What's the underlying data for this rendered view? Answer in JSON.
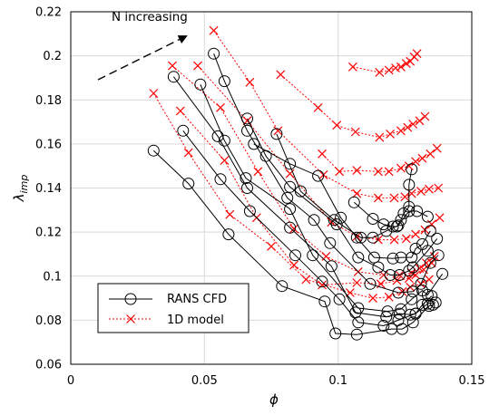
{
  "chart_data": {
    "type": "line",
    "title": "",
    "xlabel": "ϕ",
    "ylabel_base": "λ",
    "ylabel_sub": "imp",
    "xlim": [
      0,
      0.15
    ],
    "ylim": [
      0.06,
      0.22
    ],
    "xticks": [
      0,
      0.05,
      0.1,
      0.15
    ],
    "xtick_labels": [
      "0",
      "0.05",
      "0.1",
      "0.15"
    ],
    "yticks": [
      0.06,
      0.08,
      0.1,
      0.12,
      0.14,
      0.16,
      0.18,
      0.2,
      0.22
    ],
    "ytick_labels": [
      "0.06",
      "0.08",
      "0.1",
      "0.12",
      "0.14",
      "0.16",
      "0.18",
      "0.2",
      "0.22"
    ],
    "grid": true,
    "legend_position": "bottom-left",
    "annotation": "N increasing",
    "series": [
      {
        "name": "RANS CFD",
        "color": "#000000",
        "marker": "circle",
        "curves": [
          [
            [
              0.031,
              0.157
            ],
            [
              0.044,
              0.142
            ],
            [
              0.059,
              0.119
            ],
            [
              0.079,
              0.0955
            ],
            [
              0.095,
              0.0885
            ],
            [
              0.099,
              0.074
            ],
            [
              0.107,
              0.0735
            ],
            [
              0.12,
              0.076
            ],
            [
              0.124,
              0.076
            ],
            [
              0.128,
              0.079
            ],
            [
              0.134,
              0.0865
            ],
            [
              0.1355,
              0.087
            ]
          ],
          [
            [
              0.042,
              0.166
            ],
            [
              0.056,
              0.144
            ],
            [
              0.067,
              0.1295
            ],
            [
              0.084,
              0.1095
            ],
            [
              0.094,
              0.0975
            ],
            [
              0.1005,
              0.0895
            ],
            [
              0.1075,
              0.079
            ],
            [
              0.117,
              0.0775
            ],
            [
              0.1225,
              0.08
            ],
            [
              0.129,
              0.083
            ],
            [
              0.1335,
              0.0875
            ],
            [
              0.1365,
              0.088
            ]
          ],
          [
            [
              0.0385,
              0.1905
            ],
            [
              0.055,
              0.1635
            ],
            [
              0.066,
              0.14
            ],
            [
              0.082,
              0.122
            ],
            [
              0.0975,
              0.1045
            ],
            [
              0.1065,
              0.0835
            ],
            [
              0.118,
              0.0815
            ],
            [
              0.123,
              0.083
            ],
            [
              0.127,
              0.0825
            ],
            [
              0.129,
              0.083
            ],
            [
              0.1315,
              0.087
            ],
            [
              0.135,
              0.091
            ]
          ],
          [
            [
              0.0485,
              0.187
            ],
            [
              0.0575,
              0.1615
            ],
            [
              0.0655,
              0.1445
            ],
            [
              0.082,
              0.1305
            ],
            [
              0.0905,
              0.1095
            ],
            [
              0.1075,
              0.0855
            ],
            [
              0.1185,
              0.084
            ],
            [
              0.1235,
              0.085
            ],
            [
              0.1275,
              0.0895
            ],
            [
              0.1315,
              0.0935
            ],
            [
              0.1335,
              0.0915
            ],
            [
              0.139,
              0.101
            ]
          ],
          [
            [
              0.0535,
              0.201
            ],
            [
              0.0575,
              0.1885
            ],
            [
              0.066,
              0.166
            ],
            [
              0.081,
              0.1355
            ],
            [
              0.091,
              0.1255
            ],
            [
              0.097,
              0.115
            ],
            [
              0.112,
              0.0965
            ],
            [
              0.1225,
              0.0925
            ],
            [
              0.128,
              0.093
            ],
            [
              0.131,
              0.0965
            ],
            [
              0.1345,
              0.106
            ],
            [
              0.1375,
              0.1095
            ]
          ],
          [
            [
              0.066,
              0.1715
            ],
            [
              0.073,
              0.1545
            ],
            [
              0.082,
              0.1405
            ],
            [
              0.0995,
              0.1235
            ],
            [
              0.1075,
              0.1085
            ],
            [
              0.115,
              0.104
            ],
            [
              0.1195,
              0.1005
            ],
            [
              0.123,
              0.1005
            ],
            [
              0.1265,
              0.1025
            ],
            [
              0.128,
              0.104
            ],
            [
              0.1335,
              0.1115
            ],
            [
              0.137,
              0.117
            ]
          ],
          [
            [
              0.0685,
              0.16
            ],
            [
              0.082,
              0.151
            ],
            [
              0.0925,
              0.1455
            ],
            [
              0.101,
              0.1265
            ],
            [
              0.107,
              0.1175
            ],
            [
              0.1135,
              0.1085
            ],
            [
              0.1205,
              0.108
            ],
            [
              0.1235,
              0.1085
            ],
            [
              0.1275,
              0.1085
            ],
            [
              0.129,
              0.1125
            ],
            [
              0.1315,
              0.1145
            ],
            [
              0.1345,
              0.1205
            ]
          ],
          [
            [
              0.077,
              0.1645
            ],
            [
              0.086,
              0.1385
            ],
            [
              0.0985,
              0.1255
            ],
            [
              0.1085,
              0.1175
            ],
            [
              0.113,
              0.1175
            ],
            [
              0.118,
              0.1205
            ],
            [
              0.1225,
              0.123
            ],
            [
              0.1265,
              0.1295
            ],
            [
              0.1295,
              0.1295
            ],
            [
              0.1335,
              0.127
            ]
          ],
          [
            [
              0.106,
              0.1335
            ],
            [
              0.113,
              0.126
            ],
            [
              0.117,
              0.1235
            ],
            [
              0.1205,
              0.1225
            ],
            [
              0.122,
              0.1225
            ],
            [
              0.1235,
              0.1255
            ],
            [
              0.1245,
              0.1285
            ],
            [
              0.1265,
              0.1315
            ],
            [
              0.1265,
              0.1415
            ],
            [
              0.1275,
              0.1485
            ]
          ]
        ]
      },
      {
        "name": "1D model",
        "color": "#ff0000",
        "marker": "x",
        "curves": [
          [
            [
              0.031,
              0.183
            ],
            [
              0.044,
              0.156
            ],
            [
              0.0595,
              0.128
            ],
            [
              0.075,
              0.1135
            ],
            [
              0.088,
              0.0985
            ],
            [
              0.1045,
              0.0925
            ],
            [
              0.113,
              0.09
            ],
            [
              0.119,
              0.0905
            ],
            [
              0.124,
              0.093
            ],
            [
              0.127,
              0.095
            ],
            [
              0.131,
              0.0965
            ],
            [
              0.134,
              0.0985
            ]
          ],
          [
            [
              0.041,
              0.175
            ],
            [
              0.0575,
              0.1525
            ],
            [
              0.0695,
              0.1265
            ],
            [
              0.0835,
              0.105
            ],
            [
              0.094,
              0.096
            ],
            [
              0.107,
              0.097
            ],
            [
              0.116,
              0.0965
            ],
            [
              0.122,
              0.098
            ],
            [
              0.1265,
              0.099
            ],
            [
              0.129,
              0.1005
            ],
            [
              0.132,
              0.103
            ],
            [
              0.135,
              0.106
            ]
          ],
          [
            [
              0.038,
              0.1955
            ],
            [
              0.056,
              0.1765
            ],
            [
              0.07,
              0.1475
            ],
            [
              0.0835,
              0.1215
            ],
            [
              0.0955,
              0.109
            ],
            [
              0.1075,
              0.102
            ],
            [
              0.117,
              0.1005
            ],
            [
              0.123,
              0.1005
            ],
            [
              0.1275,
              0.1015
            ],
            [
              0.1305,
              0.1035
            ],
            [
              0.133,
              0.106
            ],
            [
              0.136,
              0.109
            ]
          ],
          [
            [
              0.0475,
              0.1955
            ],
            [
              0.066,
              0.1705
            ],
            [
              0.082,
              0.1465
            ],
            [
              0.0975,
              0.1245
            ],
            [
              0.107,
              0.118
            ],
            [
              0.115,
              0.1165
            ],
            [
              0.121,
              0.1165
            ],
            [
              0.1255,
              0.117
            ],
            [
              0.129,
              0.119
            ],
            [
              0.1325,
              0.121
            ],
            [
              0.135,
              0.1235
            ],
            [
              0.138,
              0.1265
            ]
          ],
          [
            [
              0.0535,
              0.2115
            ],
            [
              0.067,
              0.188
            ],
            [
              0.0775,
              0.166
            ],
            [
              0.0945,
              0.146
            ],
            [
              0.107,
              0.1375
            ],
            [
              0.115,
              0.1355
            ],
            [
              0.121,
              0.1355
            ],
            [
              0.125,
              0.136
            ],
            [
              0.1275,
              0.1375
            ],
            [
              0.131,
              0.1385
            ],
            [
              0.134,
              0.1395
            ],
            [
              0.1375,
              0.14
            ]
          ],
          [
            [
              0.0785,
              0.1915
            ],
            [
              0.0925,
              0.1765
            ],
            [
              0.0995,
              0.1685
            ],
            [
              0.1065,
              0.1655
            ],
            [
              0.1155,
              0.163
            ],
            [
              0.1195,
              0.1645
            ],
            [
              0.1235,
              0.166
            ],
            [
              0.126,
              0.1675
            ],
            [
              0.128,
              0.169
            ],
            [
              0.1305,
              0.1705
            ],
            [
              0.1325,
              0.1725
            ]
          ],
          [
            [
              0.1055,
              0.195
            ],
            [
              0.1155,
              0.1925
            ],
            [
              0.119,
              0.1935
            ],
            [
              0.1215,
              0.1945
            ],
            [
              0.1235,
              0.195
            ],
            [
              0.1255,
              0.1965
            ],
            [
              0.127,
              0.1975
            ],
            [
              0.1285,
              0.1995
            ],
            [
              0.1295,
              0.201
            ]
          ],
          [
            [
              0.094,
              0.1555
            ],
            [
              0.1005,
              0.1475
            ],
            [
              0.107,
              0.148
            ],
            [
              0.115,
              0.1475
            ],
            [
              0.119,
              0.1475
            ],
            [
              0.1235,
              0.149
            ],
            [
              0.1265,
              0.15
            ],
            [
              0.129,
              0.152
            ],
            [
              0.1315,
              0.1535
            ],
            [
              0.1345,
              0.1555
            ],
            [
              0.137,
              0.158
            ]
          ]
        ]
      }
    ]
  }
}
